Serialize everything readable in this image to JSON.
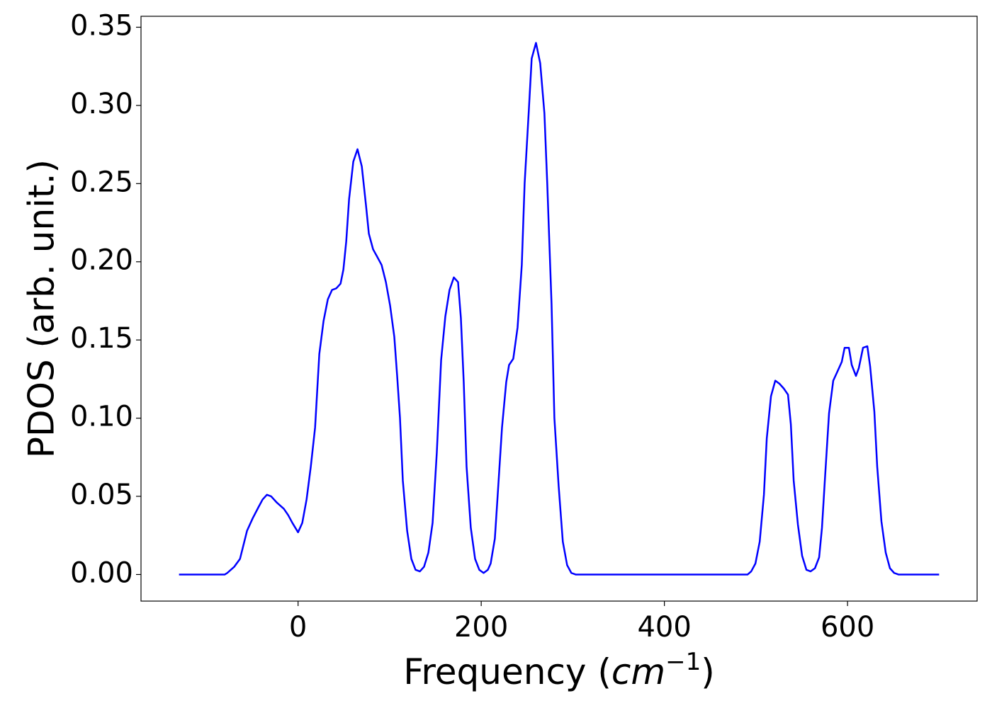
{
  "chart_data": {
    "type": "line",
    "xlabel": {
      "text": "Frequency (",
      "unit": "cm",
      "exponent": "−1",
      "close": ")"
    },
    "ylabel": "PDOS (arb. unit.)",
    "xlim": [
      -171.5,
      741.5
    ],
    "ylim": [
      -0.017,
      0.357
    ],
    "xticks": [
      0,
      200,
      400,
      600
    ],
    "yticks": [
      {
        "value": 0,
        "label": "0.00"
      },
      0.05,
      {
        "value": 0.1,
        "label": "0.10"
      },
      0.15,
      {
        "value": 0.2,
        "label": "0.20"
      },
      0.25,
      {
        "value": 0.3,
        "label": "0.30"
      },
      0.35
    ],
    "x": [
      -130,
      -80,
      -77.3,
      -69.6,
      -63.4,
      -55.7,
      -49.5,
      -43.3,
      -38.7,
      -34.0,
      -29.4,
      -23.2,
      -15.5,
      -10.8,
      -6.2,
      0,
      4.6,
      9.3,
      13.9,
      18.6,
      23.2,
      27.8,
      32.5,
      37.1,
      41.7,
      46.4,
      49.5,
      52.6,
      55.7,
      60.3,
      64.9,
      69.6,
      74.2,
      77.3,
      81.9,
      86.6,
      91.2,
      95.9,
      100.5,
      105.1,
      108.2,
      111.3,
      114.4,
      119.1,
      123.7,
      128.3,
      133.0,
      137.6,
      142.3,
      146.9,
      151.5,
      156.2,
      160.8,
      165.4,
      170.1,
      174.7,
      177.8,
      180.9,
      184.0,
      188.6,
      193.3,
      197.9,
      202.6,
      207.2,
      210.3,
      214.9,
      218.0,
      222.7,
      227.3,
      230.4,
      235.0,
      239.7,
      244.3,
      247.4,
      252.0,
      255.1,
      259.8,
      264.4,
      269.0,
      272.1,
      276.8,
      279.9,
      284.5,
      289.1,
      293.8,
      298.4,
      303.1,
      490.9,
      494.8,
      499.4,
      504.1,
      508.7,
      511.8,
      516.4,
      521.1,
      525.7,
      530.3,
      535.0,
      538.1,
      541.2,
      545.8,
      550.4,
      555.1,
      559.7,
      564.4,
      569.0,
      572.1,
      575.2,
      579.8,
      584.4,
      589.1,
      593.7,
      596.8,
      601.5,
      604.6,
      609.2,
      612.3,
      616.9,
      621.6,
      624.7,
      629.3,
      632.4,
      637.0,
      641.7,
      646.3,
      650.9,
      655.6,
      700
    ],
    "series": [
      {
        "name": "PDOS",
        "color": "#0000ff",
        "values": [
          0,
          0,
          0.001,
          0.005,
          0.01,
          0.028,
          0.036,
          0.043,
          0.048,
          0.051,
          0.05,
          0.046,
          0.042,
          0.038,
          0.033,
          0.027,
          0.033,
          0.048,
          0.069,
          0.094,
          0.141,
          0.162,
          0.176,
          0.182,
          0.183,
          0.186,
          0.195,
          0.213,
          0.24,
          0.264,
          0.272,
          0.261,
          0.236,
          0.218,
          0.208,
          0.203,
          0.198,
          0.187,
          0.172,
          0.152,
          0.127,
          0.1,
          0.06,
          0.028,
          0.01,
          0.003,
          0.002,
          0.005,
          0.014,
          0.033,
          0.078,
          0.137,
          0.165,
          0.182,
          0.19,
          0.187,
          0.164,
          0.123,
          0.069,
          0.03,
          0.01,
          0.003,
          0.001,
          0.003,
          0.007,
          0.023,
          0.051,
          0.094,
          0.123,
          0.134,
          0.138,
          0.158,
          0.198,
          0.25,
          0.297,
          0.33,
          0.34,
          0.327,
          0.295,
          0.25,
          0.173,
          0.1,
          0.057,
          0.021,
          0.006,
          0.001,
          0,
          0,
          0.002,
          0.007,
          0.021,
          0.051,
          0.087,
          0.114,
          0.124,
          0.122,
          0.119,
          0.115,
          0.096,
          0.06,
          0.032,
          0.012,
          0.003,
          0.002,
          0.004,
          0.011,
          0.03,
          0.06,
          0.103,
          0.124,
          0.13,
          0.136,
          0.145,
          0.145,
          0.134,
          0.127,
          0.132,
          0.145,
          0.146,
          0.133,
          0.104,
          0.069,
          0.034,
          0.014,
          0.004,
          0.001,
          0,
          0
        ]
      }
    ]
  }
}
